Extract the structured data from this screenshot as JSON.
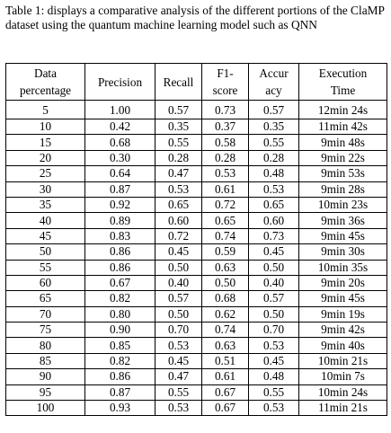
{
  "caption": "Table 1: displays a comparative analysis of the different portions of the ClaMP dataset using the quantum machine learning model such as QNN",
  "table": {
    "headers": [
      {
        "line1": "Data",
        "line2": "percentage"
      },
      {
        "line1": "Precision",
        "line2": ""
      },
      {
        "line1": "Recall",
        "line2": ""
      },
      {
        "line1": "F1-",
        "line2": "score"
      },
      {
        "line1": "Accur",
        "line2": "acy"
      },
      {
        "line1": "Execution",
        "line2": "Time"
      }
    ],
    "rows": [
      [
        "5",
        "1.00",
        "0.57",
        "0.73",
        "0.57",
        "12min 24s"
      ],
      [
        "10",
        "0.42",
        "0.35",
        "0.37",
        "0.35",
        "11min 42s"
      ],
      [
        "15",
        "0.68",
        "0.55",
        "0.58",
        "0.55",
        "9min 48s"
      ],
      [
        "20",
        "0.30",
        "0.28",
        "0.28",
        "0.28",
        "9min 22s"
      ],
      [
        "25",
        "0.64",
        "0.47",
        "0.53",
        "0.48",
        "9min 53s"
      ],
      [
        "30",
        "0.87",
        "0.53",
        "0.61",
        "0.53",
        "9min 28s"
      ],
      [
        "35",
        "0.92",
        "0.65",
        "0.72",
        "0.65",
        "10min 23s"
      ],
      [
        "40",
        "0.89",
        "0.60",
        "0.65",
        "0.60",
        "9min 36s"
      ],
      [
        "45",
        "0.83",
        "0.72",
        "0.74",
        "0.73",
        "9min 45s"
      ],
      [
        "50",
        "0.86",
        "0.45",
        "0.59",
        "0.45",
        "9min 30s"
      ],
      [
        "55",
        "0.86",
        "0.50",
        "0.63",
        "0.50",
        "10min 35s"
      ],
      [
        "60",
        "0.67",
        "0.40",
        "0.50",
        "0.40",
        "9min 20s"
      ],
      [
        "65",
        "0.82",
        "0.57",
        "0.68",
        "0.57",
        "9min 45s"
      ],
      [
        "70",
        "0.80",
        "0.50",
        "0.62",
        "0.50",
        "9min 19s"
      ],
      [
        "75",
        "0.90",
        "0.70",
        "0.74",
        "0.70",
        "9min 42s"
      ],
      [
        "80",
        "0.85",
        "0.53",
        "0.63",
        "0.53",
        "9min 40s"
      ],
      [
        "85",
        "0.82",
        "0.45",
        "0.51",
        "0.45",
        "10min 21s"
      ],
      [
        "90",
        "0.86",
        "0.47",
        "0.61",
        "0.48",
        "10min 7s"
      ],
      [
        "95",
        "0.87",
        "0.55",
        "0.67",
        "0.55",
        "10min 24s"
      ],
      [
        "100",
        "0.93",
        "0.53",
        "0.67",
        "0.53",
        "11min 21s"
      ]
    ]
  }
}
